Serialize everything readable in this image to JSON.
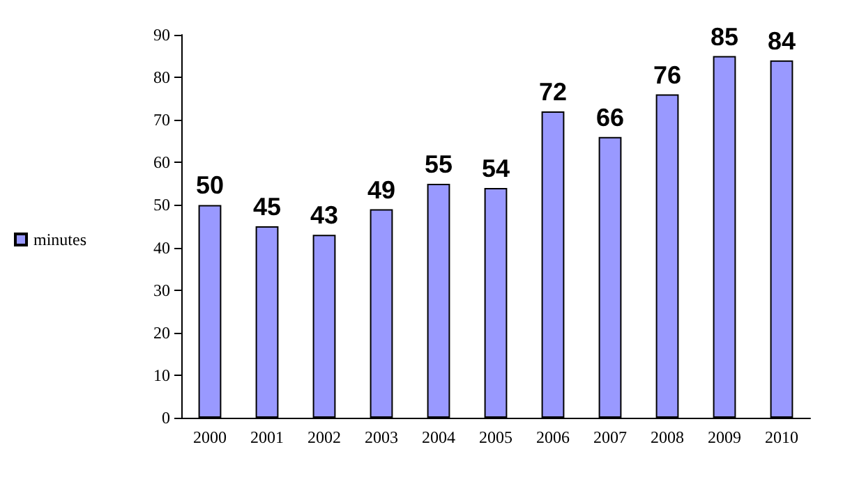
{
  "chart_data": {
    "type": "bar",
    "categories": [
      "2000",
      "2001",
      "2002",
      "2003",
      "2004",
      "2005",
      "2006",
      "2007",
      "2008",
      "2009",
      "2010"
    ],
    "series": [
      {
        "name": "minutes",
        "color": "#9999ff",
        "values": [
          50,
          45,
          43,
          49,
          55,
          54,
          72,
          66,
          76,
          85,
          84
        ]
      }
    ],
    "ylim": [
      0,
      90
    ],
    "yticks": [
      0,
      10,
      20,
      30,
      40,
      50,
      60,
      70,
      80,
      90
    ],
    "data_labels": true,
    "legend": "left",
    "grid": false
  }
}
